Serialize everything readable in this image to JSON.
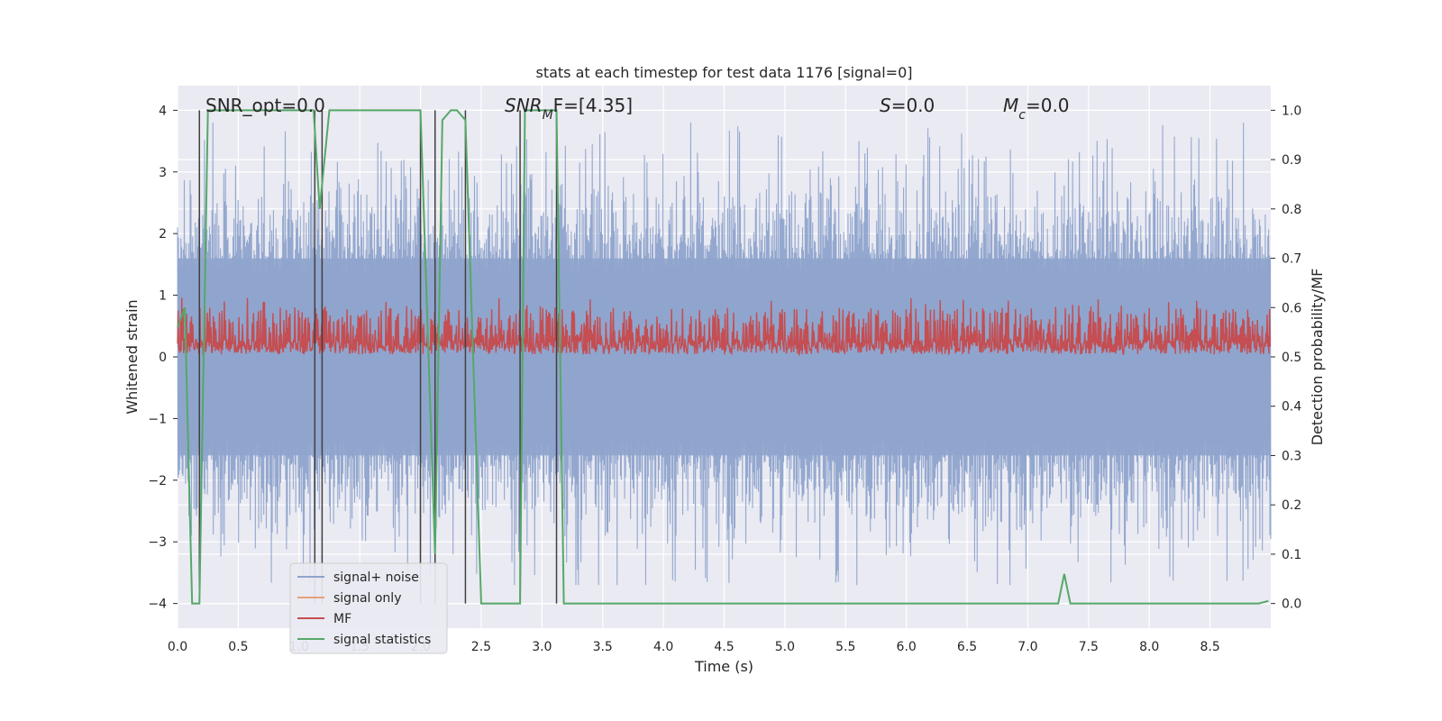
{
  "chart_data": {
    "type": "line",
    "title": "stats at each timestep for test data 1176 [signal=0]",
    "xlabel": "Time (s)",
    "ylabel": "Whitened strain",
    "y2label": "Detection probability/MF",
    "xlim": [
      0.0,
      9.0
    ],
    "ylim": [
      -4.4,
      4.4
    ],
    "y2lim": [
      -0.05,
      1.05
    ],
    "grid": true,
    "x_ticks": [
      "0.0",
      "0.5",
      "1.0",
      "1.5",
      "2.0",
      "2.5",
      "3.0",
      "3.5",
      "4.0",
      "4.5",
      "5.0",
      "5.5",
      "6.0",
      "6.5",
      "7.0",
      "7.5",
      "8.0",
      "8.5"
    ],
    "y_ticks": [
      "−4",
      "−3",
      "−2",
      "−1",
      "0",
      "1",
      "2",
      "3",
      "4"
    ],
    "y2_ticks": [
      "0.0",
      "0.1",
      "0.2",
      "0.3",
      "0.4",
      "0.5",
      "0.6",
      "0.7",
      "0.8",
      "0.9",
      "1.0"
    ],
    "annotations": {
      "snr_opt": "SNR_opt=0.0",
      "snr_mf_base": "SNR",
      "snr_mf_sub": "M",
      "snr_mf_rest": "F=[4.35]",
      "s_label": "S",
      "s_value": "=0.0",
      "mc_base": "M",
      "mc_sub": "c",
      "mc_value": "=0.0"
    },
    "legend": {
      "placement": "lower-left",
      "entries": [
        "signal+ noise",
        "signal only",
        "MF",
        "signal statistics"
      ]
    },
    "colors": {
      "signal_noise": "#8fa4cc",
      "signal_only": "#e8a07a",
      "mf": "#c44e52",
      "signal_statistics": "#55a868",
      "vlines": "#404040",
      "plot_bg": "#eaeaf2"
    },
    "noise_envelope": {
      "description_free": true,
      "core_amplitude": 1.6,
      "peak_amplitude": 3.8,
      "min_peak": -3.7
    },
    "mf_band": {
      "y2_low": 0.505,
      "y2_high": 0.6,
      "y2_peak": 0.62
    },
    "vlines_x": [
      0.18,
      1.13,
      1.19,
      2.0,
      2.12,
      2.37,
      2.82,
      3.12
    ],
    "series": [
      {
        "name": "signal statistics",
        "axis": "y2",
        "x": [
          0.0,
          0.06,
          0.12,
          0.18,
          0.25,
          0.3,
          1.12,
          1.17,
          1.25,
          2.0,
          2.06,
          2.12,
          2.18,
          2.25,
          2.3,
          2.37,
          2.5,
          2.82,
          2.86,
          3.12,
          3.18,
          7.25,
          7.3,
          7.35,
          8.9,
          8.98
        ],
        "y": [
          0.56,
          0.6,
          0.0,
          0.0,
          1.0,
          1.0,
          1.0,
          0.8,
          1.0,
          1.0,
          0.55,
          0.1,
          0.98,
          1.0,
          1.0,
          0.98,
          0.0,
          0.0,
          1.0,
          1.0,
          0.0,
          0.0,
          0.06,
          0.0,
          0.0,
          0.005
        ]
      }
    ]
  }
}
